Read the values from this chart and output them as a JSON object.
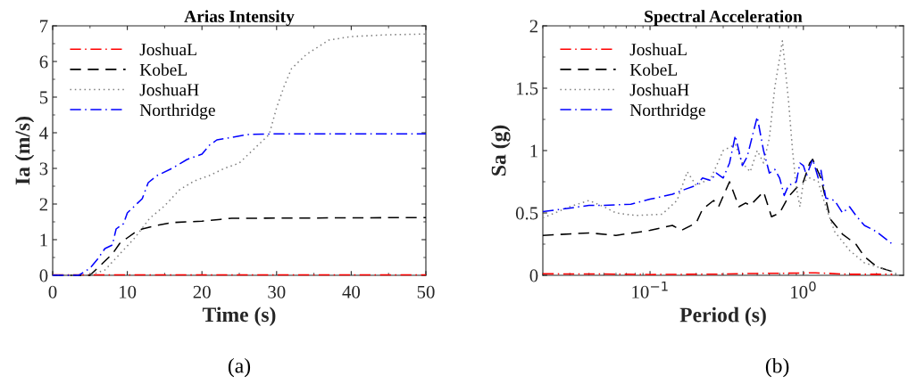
{
  "chart_data": [
    {
      "type": "line",
      "title": "Arias Intensity",
      "xlabel": "Time (s)",
      "ylabel": "Ia (m/s)",
      "xlim": [
        0,
        50
      ],
      "ylim": [
        0,
        7
      ],
      "xticks": [
        0,
        10,
        20,
        30,
        40,
        50
      ],
      "yticks": [
        0,
        1,
        2,
        3,
        4,
        5,
        6,
        7
      ],
      "legend": "top left",
      "grid": false,
      "annotations": [
        "(a)"
      ],
      "series": [
        {
          "name": "JoshuaL",
          "color": "#ff0000",
          "line_style": "dashdot",
          "x": [
            0,
            10,
            20,
            30,
            40,
            50
          ],
          "values": [
            0.01,
            0.01,
            0.01,
            0.01,
            0.01,
            0.01
          ]
        },
        {
          "name": "KobeL",
          "color": "#000000",
          "line_style": "dashed",
          "x": [
            0,
            5,
            6,
            7,
            8,
            9,
            10,
            11,
            12,
            14,
            16,
            20,
            22.5,
            24,
            50
          ],
          "values": [
            0,
            0,
            0.2,
            0.4,
            0.6,
            0.9,
            1.05,
            1.2,
            1.3,
            1.4,
            1.48,
            1.52,
            1.57,
            1.6,
            1.62
          ]
        },
        {
          "name": "JoshuaH",
          "color": "#808080",
          "line_style": "dotted",
          "x": [
            0,
            5,
            7,
            9,
            11,
            13,
            15,
            17,
            19,
            21,
            23,
            25,
            27,
            29,
            30,
            31,
            32,
            34,
            37,
            40,
            45,
            50
          ],
          "values": [
            0,
            0,
            0.15,
            0.6,
            1.05,
            1.6,
            1.95,
            2.4,
            2.65,
            2.8,
            3.0,
            3.15,
            3.55,
            3.95,
            4.7,
            5.3,
            5.8,
            6.2,
            6.6,
            6.7,
            6.75,
            6.77
          ]
        },
        {
          "name": "Northridge",
          "color": "#0000ff",
          "line_style": "dashdot",
          "x": [
            0,
            3.5,
            5,
            6,
            7,
            8,
            8.5,
            9.5,
            10,
            11,
            12,
            12.8,
            14,
            16,
            18,
            20,
            21,
            22,
            24,
            26,
            30,
            50
          ],
          "values": [
            0,
            0,
            0.2,
            0.45,
            0.75,
            0.85,
            1.3,
            1.45,
            1.75,
            1.95,
            2.15,
            2.6,
            2.8,
            3.0,
            3.25,
            3.4,
            3.65,
            3.8,
            3.87,
            3.95,
            3.97,
            3.97
          ]
        }
      ]
    },
    {
      "type": "line",
      "title": "Spectral Acceleration",
      "xlabel": "Period (s)",
      "ylabel": "Sa (g)",
      "log": "x",
      "xlim": [
        0.02,
        4.5
      ],
      "ylim": [
        0,
        2
      ],
      "xticks": [
        {
          "value": 0.1,
          "label": "10$^{−1}$"
        },
        {
          "value": 1,
          "label": "10$^{0}$"
        }
      ],
      "yticks": [
        0,
        0.5,
        1,
        1.5,
        2
      ],
      "legend": "top left",
      "grid": false,
      "annotations": [
        "(b)"
      ],
      "series": [
        {
          "name": "JoshuaL",
          "color": "#ff0000",
          "line_style": "dashdot",
          "x": [
            0.02,
            0.05,
            0.1,
            0.3,
            0.5,
            1.0,
            1.2,
            2.0,
            3.8
          ],
          "values": [
            0.012,
            0.01,
            0.006,
            0.01,
            0.015,
            0.018,
            0.02,
            0.008,
            0.008
          ]
        },
        {
          "name": "KobeL",
          "color": "#000000",
          "line_style": "dashed",
          "x": [
            0.02,
            0.04,
            0.06,
            0.1,
            0.14,
            0.16,
            0.2,
            0.22,
            0.26,
            0.28,
            0.33,
            0.38,
            0.42,
            0.45,
            0.55,
            0.62,
            0.7,
            0.8,
            0.9,
            1.0,
            1.1,
            1.15,
            1.3,
            1.5,
            1.8,
            2.2,
            2.5,
            3.0,
            3.8
          ],
          "values": [
            0.32,
            0.34,
            0.32,
            0.36,
            0.4,
            0.36,
            0.42,
            0.53,
            0.6,
            0.55,
            0.75,
            0.55,
            0.58,
            0.56,
            0.67,
            0.47,
            0.5,
            0.63,
            0.7,
            0.75,
            0.9,
            0.93,
            0.78,
            0.45,
            0.33,
            0.25,
            0.15,
            0.07,
            0.03
          ]
        },
        {
          "name": "JoshuaH",
          "color": "#808080",
          "line_style": "dotted",
          "x": [
            0.02,
            0.03,
            0.04,
            0.05,
            0.06,
            0.08,
            0.12,
            0.15,
            0.175,
            0.2,
            0.25,
            0.3,
            0.36,
            0.4,
            0.45,
            0.5,
            0.55,
            0.6,
            0.65,
            0.73,
            0.8,
            0.85,
            0.9,
            0.95,
            1.0,
            1.1,
            1.25,
            1.4,
            1.6,
            2.0,
            2.5,
            3.0,
            3.8
          ],
          "values": [
            0.46,
            0.55,
            0.6,
            0.55,
            0.5,
            0.48,
            0.49,
            0.6,
            0.83,
            0.72,
            0.78,
            1.0,
            1.05,
            0.9,
            0.83,
            1.0,
            0.9,
            1.1,
            1.5,
            1.88,
            1.4,
            1.0,
            0.7,
            0.55,
            0.75,
            0.78,
            0.75,
            0.55,
            0.35,
            0.2,
            0.1,
            0.07,
            0.03
          ]
        },
        {
          "name": "Northridge",
          "color": "#0000ff",
          "line_style": "dashdot",
          "x": [
            0.02,
            0.04,
            0.05,
            0.075,
            0.1,
            0.14,
            0.17,
            0.2,
            0.22,
            0.25,
            0.27,
            0.3,
            0.33,
            0.36,
            0.4,
            0.43,
            0.5,
            0.55,
            0.6,
            0.65,
            0.7,
            0.75,
            0.8,
            0.9,
            0.95,
            1.0,
            1.05,
            1.15,
            1.25,
            1.3,
            1.4,
            1.6,
            1.8,
            2.0,
            2.2,
            2.5,
            3.0,
            3.8
          ],
          "values": [
            0.51,
            0.56,
            0.56,
            0.57,
            0.61,
            0.65,
            0.69,
            0.72,
            0.78,
            0.76,
            0.82,
            0.78,
            0.9,
            1.12,
            0.88,
            0.95,
            1.27,
            1.0,
            0.82,
            0.85,
            0.78,
            0.64,
            0.72,
            0.75,
            0.9,
            0.88,
            0.8,
            0.93,
            0.78,
            0.85,
            0.62,
            0.6,
            0.5,
            0.55,
            0.48,
            0.4,
            0.35,
            0.25
          ]
        }
      ]
    }
  ]
}
